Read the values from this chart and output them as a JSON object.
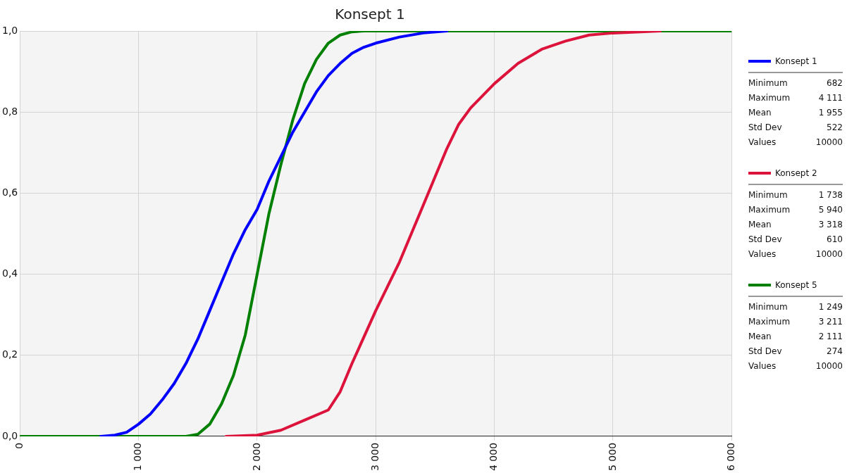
{
  "chart_data": {
    "type": "line",
    "title": "Konsept 1",
    "series": [
      {
        "name": "Konsept 1",
        "color": "#0000ff",
        "x": [
          682,
          800,
          900,
          1000,
          1100,
          1200,
          1300,
          1400,
          1500,
          1600,
          1700,
          1800,
          1900,
          2000,
          2100,
          2200,
          2300,
          2400,
          2500,
          2600,
          2700,
          2800,
          2900,
          3000,
          3200,
          3400,
          3600
        ],
        "values": [
          0,
          0.003,
          0.01,
          0.03,
          0.055,
          0.09,
          0.13,
          0.18,
          0.24,
          0.31,
          0.38,
          0.45,
          0.51,
          0.56,
          0.63,
          0.69,
          0.75,
          0.8,
          0.85,
          0.89,
          0.92,
          0.945,
          0.96,
          0.97,
          0.985,
          0.995,
          1
        ]
      },
      {
        "name": "Konsept 2",
        "color": "#dc143c",
        "x": [
          1738,
          2000,
          2200,
          2400,
          2600,
          2700,
          2800,
          2900,
          3000,
          3100,
          3200,
          3300,
          3400,
          3500,
          3600,
          3700,
          3800,
          3900,
          4000,
          4200,
          4400,
          4600,
          4800,
          5000,
          5400
        ],
        "values": [
          0,
          0.003,
          0.015,
          0.04,
          0.065,
          0.11,
          0.18,
          0.245,
          0.31,
          0.37,
          0.43,
          0.5,
          0.57,
          0.64,
          0.71,
          0.77,
          0.81,
          0.84,
          0.87,
          0.92,
          0.955,
          0.975,
          0.99,
          0.995,
          1
        ]
      },
      {
        "name": "Konsept 5",
        "color": "#008000",
        "x": [
          0,
          1400,
          1500,
          1600,
          1700,
          1800,
          1900,
          2000,
          2100,
          2200,
          2300,
          2400,
          2500,
          2600,
          2700,
          2800,
          2900,
          6000
        ],
        "values": [
          0,
          0,
          0.005,
          0.03,
          0.08,
          0.15,
          0.25,
          0.4,
          0.55,
          0.67,
          0.78,
          0.87,
          0.93,
          0.97,
          0.99,
          0.998,
          1,
          1
        ]
      }
    ],
    "xlim": [
      0,
      6000
    ],
    "xticks": [
      0,
      {
        "value": 1000,
        "label": "1 000"
      },
      {
        "value": 2000,
        "label": "2 000"
      },
      {
        "value": 3000,
        "label": "3 000"
      },
      {
        "value": 4000,
        "label": "4 000"
      },
      {
        "value": 5000,
        "label": "5 000"
      },
      {
        "value": 6000,
        "label": "6 000"
      }
    ],
    "ylim": [
      0,
      1
    ],
    "yticks": [
      {
        "value": 0,
        "label": "0,0"
      },
      {
        "value": 0.2,
        "label": "0,2"
      },
      {
        "value": 0.4,
        "label": "0,4"
      },
      {
        "value": 0.6,
        "label": "0,6"
      },
      {
        "value": 0.8,
        "label": "0,8"
      },
      {
        "value": 1,
        "label": "1,0"
      }
    ],
    "grid": true,
    "legend": "right",
    "marker": "none",
    "line_style": "solid",
    "annotations": [
      "Minimum\t682",
      "Maximum\t4 111",
      "Mean\t1 955",
      "Std Dev\t522",
      "Values\t10000",
      "Minimum\t1 738",
      "Maximum\t5 940",
      "Mean\t3 318",
      "Std Dev\t610",
      "Values\t10000",
      "Minimum\t1 249",
      "Maximum\t3 211",
      "Mean\t2 111",
      "Std Dev\t274",
      "Values\t10000"
    ]
  }
}
